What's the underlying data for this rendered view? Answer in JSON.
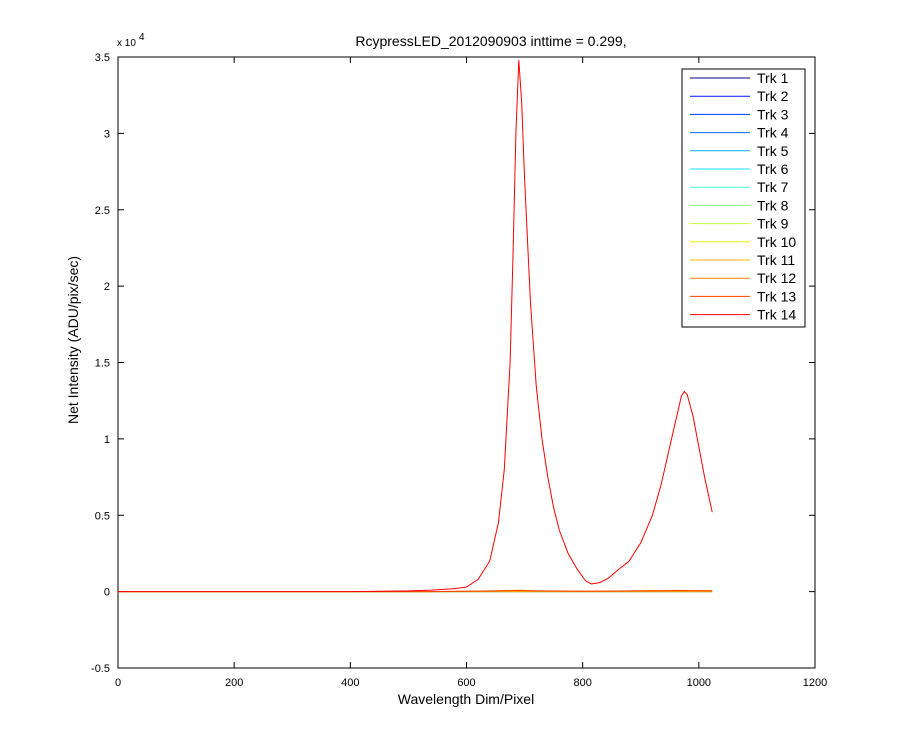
{
  "chart_data": {
    "type": "line",
    "title": "RcypressLED_2012090903 inttime = 0.299,",
    "xlabel": "Wavelength Dim/Pixel",
    "ylabel": "Net Intensity (ADU/pix/sec)",
    "xlim": [
      0,
      1200
    ],
    "ylim": [
      -5000,
      35000
    ],
    "x_ticks": [
      "0",
      "200",
      "400",
      "600",
      "800",
      "1000",
      "1200"
    ],
    "y_ticks": [
      "-0.5",
      "0",
      "0.5",
      "1",
      "1.5",
      "2",
      "2.5",
      "3",
      "3.5"
    ],
    "y_exponent_base": "x 10",
    "y_exponent": "4",
    "legend_position": "top-right",
    "grid": false,
    "series": [
      {
        "name": "Trk 1",
        "color": "#00008F",
        "points": [
          [
            0,
            0
          ],
          [
            1023,
            0
          ]
        ]
      },
      {
        "name": "Trk 2",
        "color": "#0010FF",
        "points": [
          [
            0,
            0
          ],
          [
            1023,
            0
          ]
        ]
      },
      {
        "name": "Trk 3",
        "color": "#0040FF",
        "points": [
          [
            0,
            0
          ],
          [
            1023,
            0
          ]
        ]
      },
      {
        "name": "Trk 4",
        "color": "#0070FF",
        "points": [
          [
            0,
            0
          ],
          [
            1023,
            0
          ]
        ]
      },
      {
        "name": "Trk 5",
        "color": "#00B0FF",
        "points": [
          [
            0,
            0
          ],
          [
            1023,
            0
          ]
        ]
      },
      {
        "name": "Trk 6",
        "color": "#10E0FF",
        "points": [
          [
            0,
            0
          ],
          [
            1023,
            0
          ]
        ]
      },
      {
        "name": "Trk 7",
        "color": "#40FFCF",
        "points": [
          [
            0,
            0
          ],
          [
            1023,
            0
          ]
        ]
      },
      {
        "name": "Trk 8",
        "color": "#80FF80",
        "points": [
          [
            0,
            0
          ],
          [
            1023,
            0
          ]
        ]
      },
      {
        "name": "Trk 9",
        "color": "#BFFF40",
        "points": [
          [
            0,
            0
          ],
          [
            1023,
            0
          ]
        ]
      },
      {
        "name": "Trk 10",
        "color": "#F0F000",
        "points": [
          [
            0,
            0
          ],
          [
            1023,
            0
          ]
        ]
      },
      {
        "name": "Trk 11",
        "color": "#FFB000",
        "points": [
          [
            0,
            0
          ],
          [
            1023,
            0
          ]
        ]
      },
      {
        "name": "Trk 12",
        "color": "#FF8000",
        "points": [
          [
            0,
            0
          ],
          [
            540,
            0
          ],
          [
            600,
            30
          ],
          [
            650,
            60
          ],
          [
            690,
            90
          ],
          [
            720,
            60
          ],
          [
            760,
            40
          ],
          [
            800,
            30
          ],
          [
            860,
            40
          ],
          [
            900,
            60
          ],
          [
            960,
            80
          ],
          [
            1023,
            70
          ]
        ]
      },
      {
        "name": "Trk 13",
        "color": "#FF4000",
        "points": [
          [
            0,
            0
          ],
          [
            540,
            0
          ],
          [
            600,
            20
          ],
          [
            650,
            40
          ],
          [
            690,
            70
          ],
          [
            720,
            40
          ],
          [
            800,
            20
          ],
          [
            900,
            40
          ],
          [
            960,
            60
          ],
          [
            1023,
            50
          ]
        ]
      },
      {
        "name": "Trk 14",
        "color": "#FF0000",
        "points": [
          [
            0,
            0
          ],
          [
            400,
            0
          ],
          [
            500,
            50
          ],
          [
            540,
            100
          ],
          [
            580,
            200
          ],
          [
            600,
            300
          ],
          [
            620,
            800
          ],
          [
            640,
            2000
          ],
          [
            655,
            4500
          ],
          [
            665,
            8000
          ],
          [
            675,
            15000
          ],
          [
            680,
            22000
          ],
          [
            685,
            30000
          ],
          [
            690,
            34800
          ],
          [
            695,
            32000
          ],
          [
            700,
            27000
          ],
          [
            710,
            19000
          ],
          [
            720,
            13500
          ],
          [
            730,
            10000
          ],
          [
            740,
            7500
          ],
          [
            750,
            5500
          ],
          [
            760,
            4000
          ],
          [
            775,
            2500
          ],
          [
            790,
            1500
          ],
          [
            805,
            700
          ],
          [
            815,
            500
          ],
          [
            830,
            600
          ],
          [
            845,
            900
          ],
          [
            860,
            1400
          ],
          [
            880,
            2000
          ],
          [
            900,
            3200
          ],
          [
            920,
            5000
          ],
          [
            935,
            7000
          ],
          [
            950,
            9500
          ],
          [
            962,
            11500
          ],
          [
            970,
            12800
          ],
          [
            975,
            13100
          ],
          [
            980,
            12900
          ],
          [
            990,
            11500
          ],
          [
            1000,
            9500
          ],
          [
            1010,
            7500
          ],
          [
            1023,
            5200
          ]
        ]
      }
    ]
  }
}
